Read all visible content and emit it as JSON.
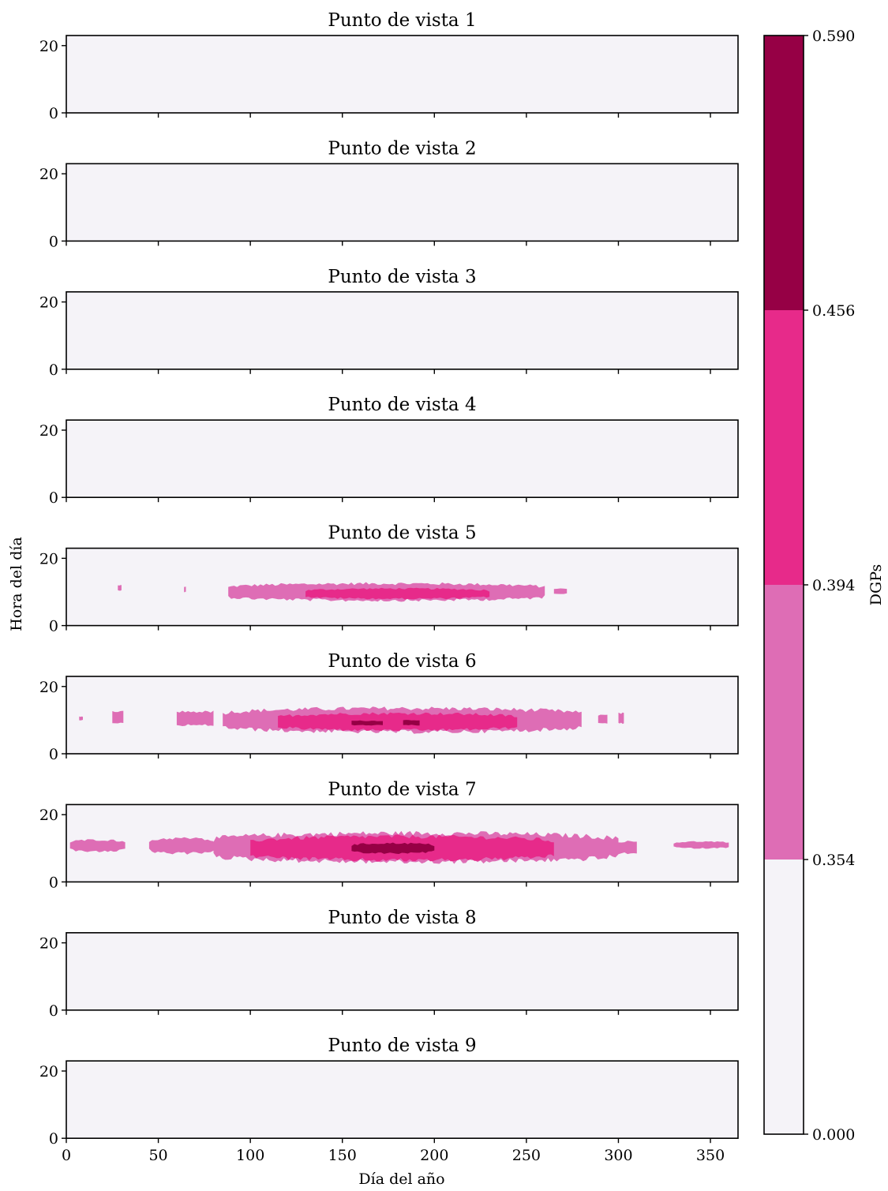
{
  "chart_data": {
    "type": "heatmap",
    "subtype": "filled-contour small multiples",
    "xlabel": "Día del año",
    "ylabel": "Hora del día",
    "xlim": [
      0,
      365
    ],
    "ylim": [
      0,
      23
    ],
    "xticks": [
      0,
      50,
      100,
      150,
      200,
      250,
      300,
      350
    ],
    "yticks": [
      0,
      20
    ],
    "grid": false,
    "colorbar": {
      "label": "DGPs",
      "levels": [
        0.0,
        0.354,
        0.394,
        0.456,
        0.59
      ],
      "tick_labels": [
        "0.000",
        "0.354",
        "0.394",
        "0.456",
        "0.590"
      ],
      "colors": [
        "#f5f3f8",
        "#de6db5",
        "#e72a8a",
        "#960045"
      ]
    },
    "panels": [
      {
        "title": "Punto de vista 1",
        "regions": []
      },
      {
        "title": "Punto de vista 2",
        "regions": []
      },
      {
        "title": "Punto de vista 3",
        "regions": []
      },
      {
        "title": "Punto de vista 4",
        "regions": []
      },
      {
        "title": "Punto de vista 5",
        "regions": [
          {
            "level": 1,
            "day_start": 88,
            "day_end": 260,
            "hour_low": 7.5,
            "hour_high": 12.5
          },
          {
            "level": 1,
            "day_start": 28,
            "day_end": 30,
            "hour_low": 10.5,
            "hour_high": 12
          },
          {
            "level": 1,
            "day_start": 64,
            "day_end": 65,
            "hour_low": 10,
            "hour_high": 11.5
          },
          {
            "level": 1,
            "day_start": 265,
            "day_end": 272,
            "hour_low": 9.5,
            "hour_high": 11
          },
          {
            "level": 2,
            "day_start": 130,
            "day_end": 230,
            "hour_low": 8,
            "hour_high": 11
          }
        ]
      },
      {
        "title": "Punto de vista 6",
        "regions": [
          {
            "level": 1,
            "day_start": 85,
            "day_end": 280,
            "hour_low": 6.5,
            "hour_high": 13.5
          },
          {
            "level": 1,
            "day_start": 60,
            "day_end": 80,
            "hour_low": 8.5,
            "hour_high": 12.5
          },
          {
            "level": 1,
            "day_start": 25,
            "day_end": 31,
            "hour_low": 9,
            "hour_high": 12.5
          },
          {
            "level": 1,
            "day_start": 7,
            "day_end": 9,
            "hour_low": 10,
            "hour_high": 11
          },
          {
            "level": 1,
            "day_start": 289,
            "day_end": 294,
            "hour_low": 9,
            "hour_high": 11.5
          },
          {
            "level": 1,
            "day_start": 300,
            "day_end": 303,
            "hour_low": 9,
            "hour_high": 12
          },
          {
            "level": 2,
            "day_start": 115,
            "day_end": 245,
            "hour_low": 7,
            "hour_high": 12
          },
          {
            "level": 3,
            "day_start": 155,
            "day_end": 172,
            "hour_low": 8.5,
            "hour_high": 9.8
          },
          {
            "level": 3,
            "day_start": 183,
            "day_end": 192,
            "hour_low": 8.5,
            "hour_high": 10
          }
        ]
      },
      {
        "title": "Punto de vista 7",
        "regions": [
          {
            "level": 1,
            "day_start": 80,
            "day_end": 300,
            "hour_low": 6,
            "hour_high": 14.5
          },
          {
            "level": 1,
            "day_start": 45,
            "day_end": 80,
            "hour_low": 8.5,
            "hour_high": 13
          },
          {
            "level": 1,
            "day_start": 2,
            "day_end": 32,
            "hour_low": 9,
            "hour_high": 12.5
          },
          {
            "level": 1,
            "day_start": 300,
            "day_end": 310,
            "hour_low": 8.5,
            "hour_high": 12
          },
          {
            "level": 1,
            "day_start": 330,
            "day_end": 360,
            "hour_low": 10,
            "hour_high": 12
          },
          {
            "level": 2,
            "day_start": 100,
            "day_end": 265,
            "hour_low": 6.5,
            "hour_high": 13.5
          },
          {
            "level": 3,
            "day_start": 155,
            "day_end": 200,
            "hour_low": 8.5,
            "hour_high": 11.5
          }
        ]
      },
      {
        "title": "Punto de vista 8",
        "regions": []
      },
      {
        "title": "Punto de vista 9",
        "regions": []
      }
    ]
  }
}
